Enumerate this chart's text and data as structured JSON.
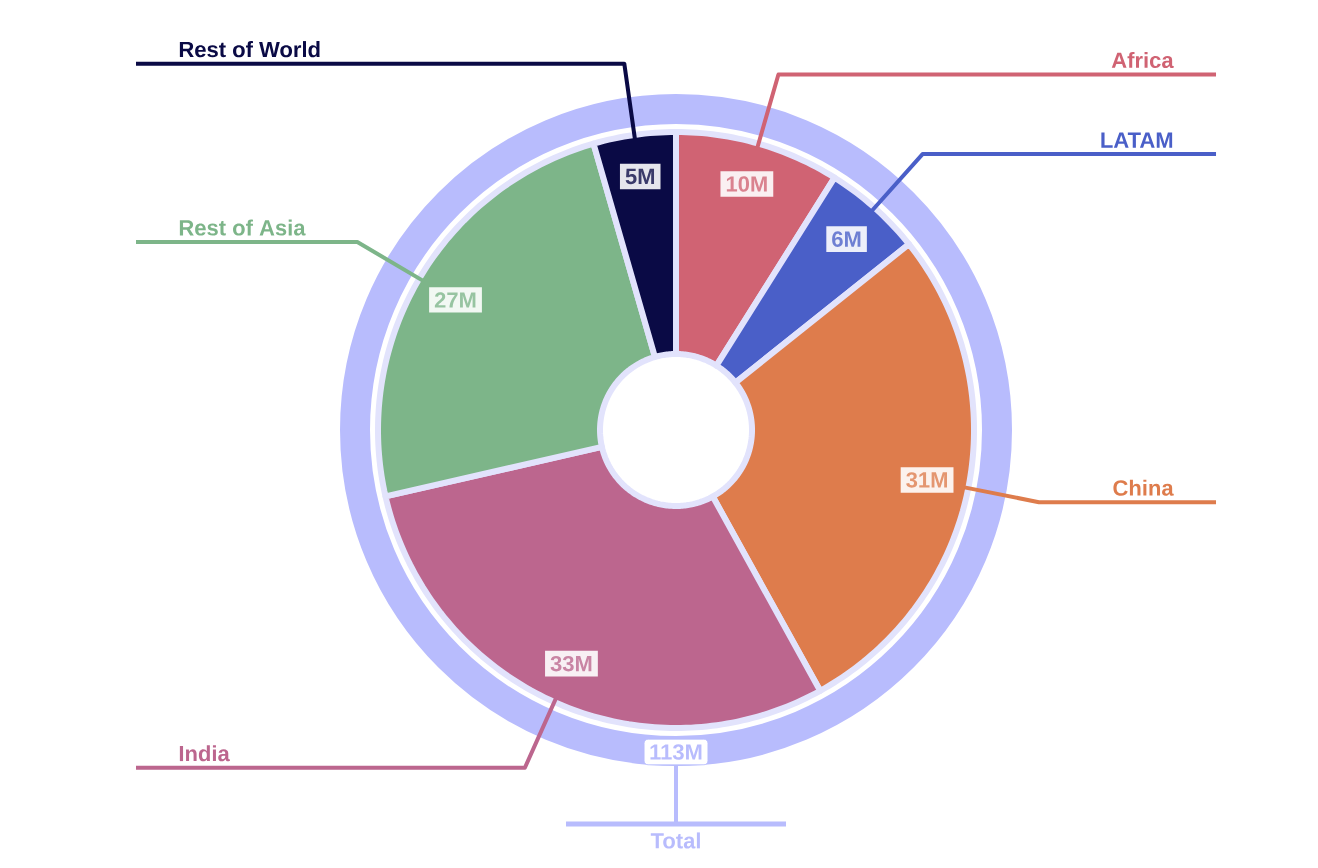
{
  "chart_data": {
    "type": "donut",
    "categories": [
      "Africa",
      "LATAM",
      "China",
      "India",
      "Rest of Asia",
      "Rest of World"
    ],
    "values": [
      10,
      6,
      31,
      33,
      27,
      5
    ],
    "colors": [
      "#d06373",
      "#4a5fc8",
      "#de7c4c",
      "#bc668e",
      "#7db589",
      "#0a0a45"
    ],
    "value_labels": [
      "10M",
      "6M",
      "31M",
      "33M",
      "27M",
      "5M"
    ],
    "annotations": [
      "113M",
      "Total"
    ]
  }
}
